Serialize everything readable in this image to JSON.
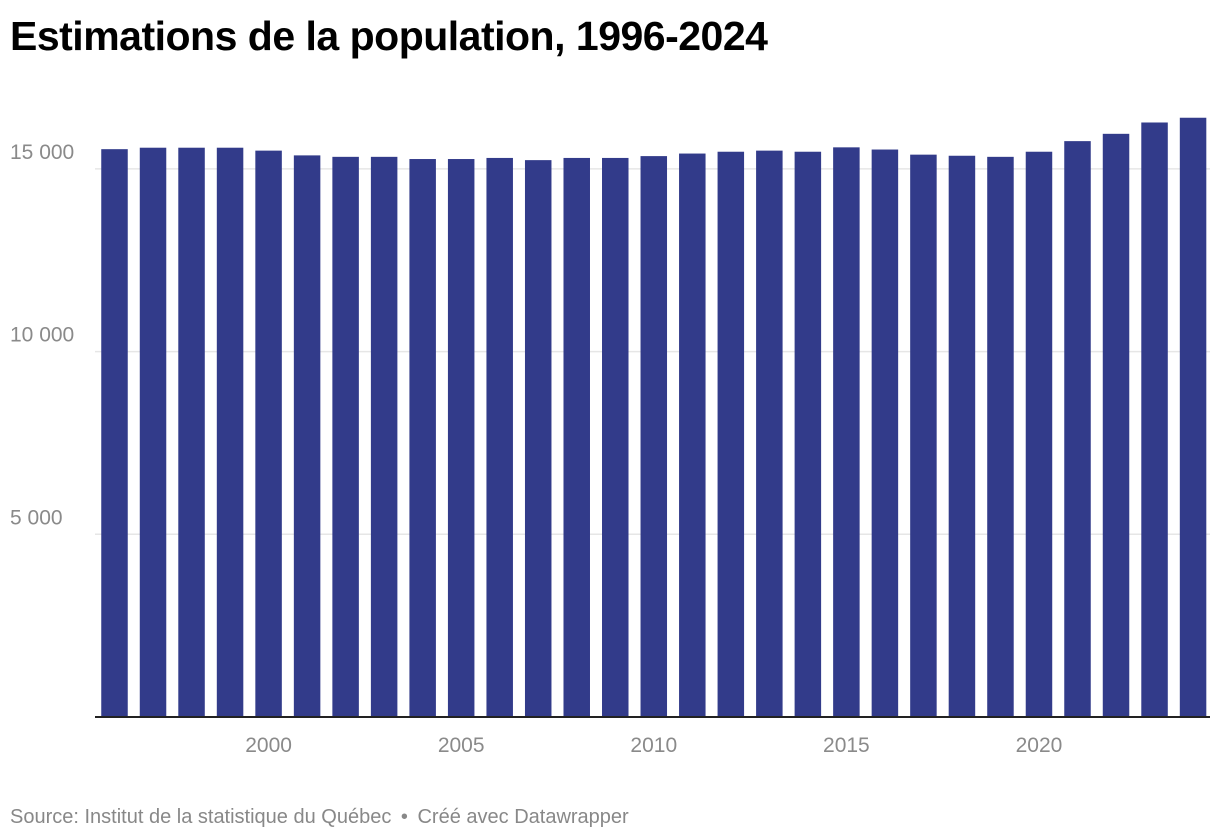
{
  "title": "Estimations de la population, 1996-2024",
  "footer": {
    "source": "Source: Institut de la statistique du Québec",
    "separator": "•",
    "credit": "Créé avec Datawrapper"
  },
  "colors": {
    "bar": "#323b8a",
    "grid": "#e6e6e6",
    "axis": "#222222",
    "tick_text": "#8a8a8a"
  },
  "chart_data": {
    "type": "bar",
    "x": [
      1996,
      1997,
      1998,
      1999,
      2000,
      2001,
      2002,
      2003,
      2004,
      2005,
      2006,
      2007,
      2008,
      2009,
      2010,
      2011,
      2012,
      2013,
      2014,
      2015,
      2016,
      2017,
      2018,
      2019,
      2020,
      2021,
      2022,
      2023,
      2024
    ],
    "values": [
      15540,
      15580,
      15580,
      15580,
      15500,
      15370,
      15330,
      15330,
      15270,
      15270,
      15300,
      15240,
      15300,
      15300,
      15350,
      15420,
      15470,
      15500,
      15470,
      15590,
      15530,
      15390,
      15360,
      15330,
      15470,
      15760,
      15960,
      16270,
      16400
    ],
    "x_ticks": [
      {
        "year": 2000,
        "label": "2000"
      },
      {
        "year": 2005,
        "label": "2005"
      },
      {
        "year": 2010,
        "label": "2010"
      },
      {
        "year": 2015,
        "label": "2015"
      },
      {
        "year": 2020,
        "label": "2020"
      }
    ],
    "y_ticks": [
      {
        "value": 5000,
        "label": "5 000"
      },
      {
        "value": 10000,
        "label": "10 000"
      },
      {
        "value": 15000,
        "label": "15 000"
      }
    ],
    "ylim": [
      0,
      17000
    ],
    "xlabel": "",
    "ylabel": "",
    "grid": true,
    "legend": false
  }
}
